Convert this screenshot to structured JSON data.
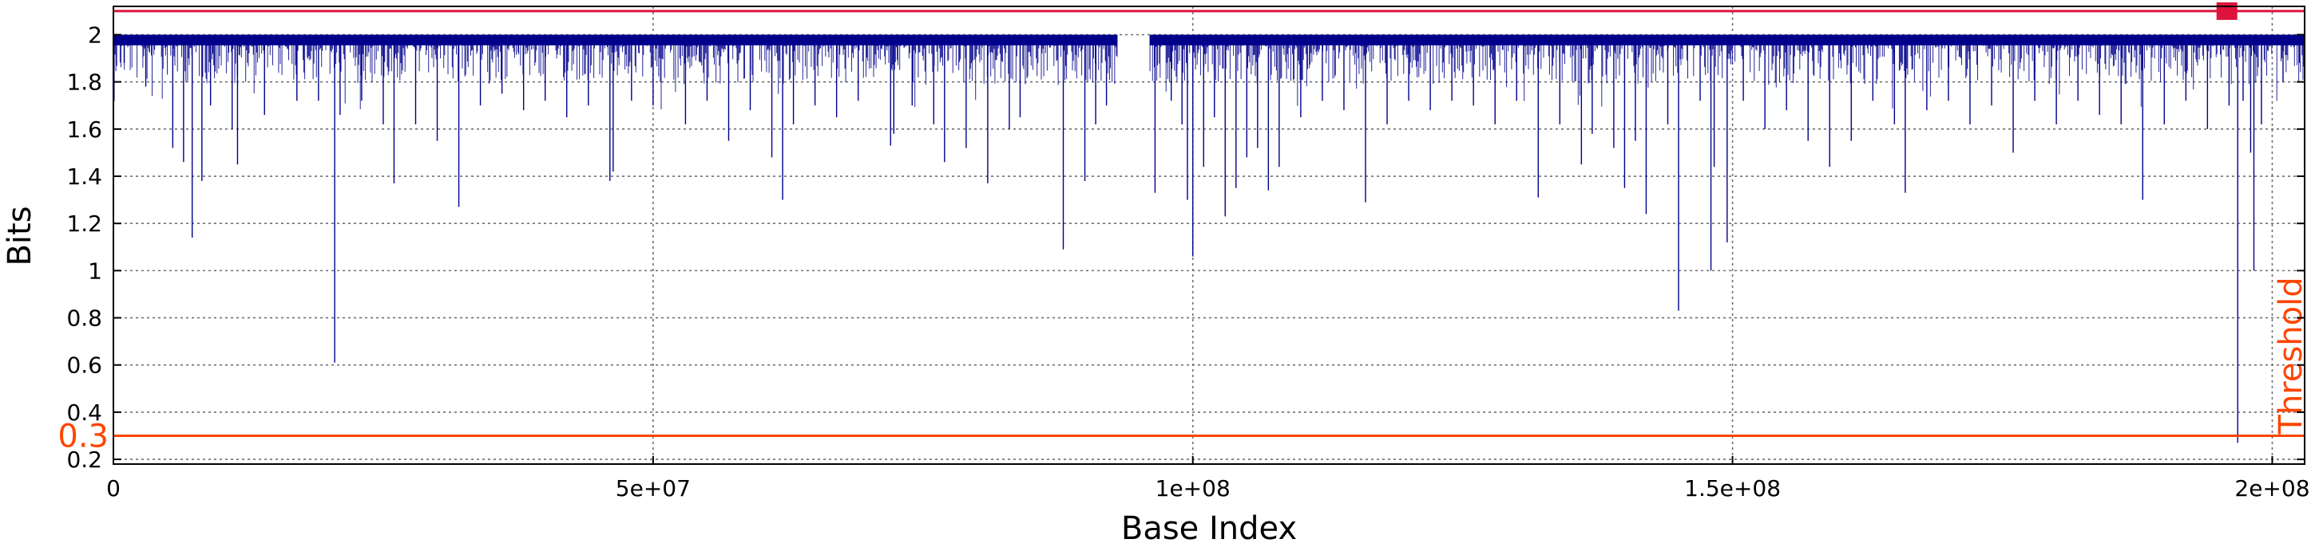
{
  "chart_data": {
    "type": "line",
    "title": "",
    "xlabel": "Base Index",
    "ylabel": "Bits",
    "xlim": [
      0,
      203000000
    ],
    "ylim": [
      0.18,
      2.12
    ],
    "grid": true,
    "legend": "none",
    "x_ticks": [
      0,
      50000000,
      100000000,
      150000000,
      200000000
    ],
    "x_tick_labels": [
      "0",
      "5e+07",
      "1e+08",
      "1.5e+08",
      "2e+08"
    ],
    "y_ticks": [
      0.2,
      0.4,
      0.6,
      0.8,
      1.0,
      1.2,
      1.4,
      1.6,
      1.8,
      2.0
    ],
    "y_tick_labels": [
      "0.2",
      "0.4",
      "0.6",
      "0.8",
      "1",
      "1.2",
      "1.4",
      "1.6",
      "1.8",
      "2"
    ],
    "series": [
      {
        "color": "#00008b",
        "baseline": 2.0,
        "dense_band_bottom": 1.9,
        "gaps": [
          [
            93000000,
            96000000
          ]
        ],
        "dips": [
          [
            1000000,
            1.88
          ],
          [
            3000000,
            1.78
          ],
          [
            5500000,
            1.52
          ],
          [
            6500000,
            1.46
          ],
          [
            7300000,
            1.14
          ],
          [
            8200000,
            1.38
          ],
          [
            9000000,
            1.7
          ],
          [
            11000000,
            1.6
          ],
          [
            11500000,
            1.45
          ],
          [
            14000000,
            1.66
          ],
          [
            17000000,
            1.72
          ],
          [
            19000000,
            1.72
          ],
          [
            20500000,
            0.61
          ],
          [
            21000000,
            1.66
          ],
          [
            23000000,
            1.72
          ],
          [
            25000000,
            1.62
          ],
          [
            26000000,
            1.37
          ],
          [
            28000000,
            1.62
          ],
          [
            30000000,
            1.55
          ],
          [
            32000000,
            1.27
          ],
          [
            34000000,
            1.7
          ],
          [
            36000000,
            1.75
          ],
          [
            38000000,
            1.68
          ],
          [
            40000000,
            1.72
          ],
          [
            42000000,
            1.65
          ],
          [
            44000000,
            1.7
          ],
          [
            46000000,
            1.38
          ],
          [
            46300000,
            1.42
          ],
          [
            48000000,
            1.72
          ],
          [
            50000000,
            1.7
          ],
          [
            53000000,
            1.62
          ],
          [
            55000000,
            1.72
          ],
          [
            57000000,
            1.55
          ],
          [
            59000000,
            1.68
          ],
          [
            61000000,
            1.48
          ],
          [
            62000000,
            1.3
          ],
          [
            63000000,
            1.62
          ],
          [
            65000000,
            1.7
          ],
          [
            67000000,
            1.65
          ],
          [
            69000000,
            1.72
          ],
          [
            72000000,
            1.53
          ],
          [
            72300000,
            1.58
          ],
          [
            74000000,
            1.7
          ],
          [
            76000000,
            1.62
          ],
          [
            77000000,
            1.46
          ],
          [
            79000000,
            1.52
          ],
          [
            81000000,
            1.37
          ],
          [
            83000000,
            1.6
          ],
          [
            84000000,
            1.65
          ],
          [
            88000000,
            1.09
          ],
          [
            90000000,
            1.38
          ],
          [
            91000000,
            1.62
          ],
          [
            92000000,
            1.7
          ],
          [
            96500000,
            1.33
          ],
          [
            98000000,
            1.72
          ],
          [
            99000000,
            1.62
          ],
          [
            99500000,
            1.3
          ],
          [
            100000000,
            1.06
          ],
          [
            101000000,
            1.44
          ],
          [
            102000000,
            1.65
          ],
          [
            103000000,
            1.23
          ],
          [
            104000000,
            1.35
          ],
          [
            105000000,
            1.48
          ],
          [
            106000000,
            1.52
          ],
          [
            107000000,
            1.34
          ],
          [
            108000000,
            1.44
          ],
          [
            110000000,
            1.65
          ],
          [
            112000000,
            1.72
          ],
          [
            114000000,
            1.68
          ],
          [
            116000000,
            1.29
          ],
          [
            118000000,
            1.62
          ],
          [
            120000000,
            1.72
          ],
          [
            122000000,
            1.68
          ],
          [
            124000000,
            1.72
          ],
          [
            126000000,
            1.7
          ],
          [
            128000000,
            1.62
          ],
          [
            130000000,
            1.72
          ],
          [
            132000000,
            1.31
          ],
          [
            134000000,
            1.62
          ],
          [
            136000000,
            1.45
          ],
          [
            137000000,
            1.58
          ],
          [
            139000000,
            1.52
          ],
          [
            140000000,
            1.35
          ],
          [
            141000000,
            1.55
          ],
          [
            142000000,
            1.24
          ],
          [
            144000000,
            1.62
          ],
          [
            145000000,
            0.83
          ],
          [
            147000000,
            1.72
          ],
          [
            148000000,
            1.0
          ],
          [
            148300000,
            1.44
          ],
          [
            149500000,
            1.12
          ],
          [
            151000000,
            1.72
          ],
          [
            153000000,
            1.6
          ],
          [
            155000000,
            1.68
          ],
          [
            157000000,
            1.55
          ],
          [
            159000000,
            1.44
          ],
          [
            161000000,
            1.55
          ],
          [
            163000000,
            1.72
          ],
          [
            165000000,
            1.62
          ],
          [
            166000000,
            1.33
          ],
          [
            168000000,
            1.68
          ],
          [
            170000000,
            1.72
          ],
          [
            172000000,
            1.62
          ],
          [
            174000000,
            1.7
          ],
          [
            176000000,
            1.5
          ],
          [
            178000000,
            1.72
          ],
          [
            180000000,
            1.62
          ],
          [
            182000000,
            1.72
          ],
          [
            184000000,
            1.66
          ],
          [
            186000000,
            1.62
          ],
          [
            188000000,
            1.3
          ],
          [
            190000000,
            1.62
          ],
          [
            192000000,
            1.72
          ],
          [
            194000000,
            1.6
          ],
          [
            196000000,
            1.7
          ],
          [
            196800000,
            0.27
          ],
          [
            197300000,
            1.72
          ],
          [
            198000000,
            1.5
          ],
          [
            198300000,
            1.0
          ],
          [
            199000000,
            1.62
          ],
          [
            201000000,
            1.8
          ],
          [
            202500000,
            1.88
          ]
        ]
      }
    ],
    "reference_lines": [
      {
        "y": 0.3,
        "color": "#ff4500",
        "label": "0.3",
        "side_label": "Threshold"
      },
      {
        "y": 2.1,
        "color": "#dc143c",
        "marker_x": 195800000
      }
    ]
  }
}
